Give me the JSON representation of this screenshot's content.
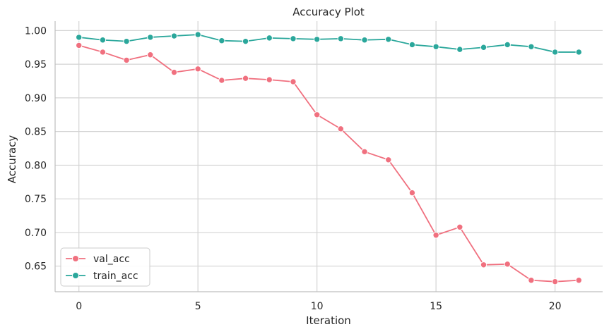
{
  "chart_data": {
    "type": "line",
    "title": "Accuracy Plot",
    "xlabel": "Iteration",
    "ylabel": "Accuracy",
    "xlim": [
      -1,
      22
    ],
    "ylim": [
      0.612,
      1.014
    ],
    "xticks": [
      0,
      5,
      10,
      15,
      20
    ],
    "yticks": [
      0.65,
      0.7,
      0.75,
      0.8,
      0.85,
      0.9,
      0.95,
      1.0
    ],
    "ytick_labels": [
      "0.65",
      "0.70",
      "0.75",
      "0.80",
      "0.85",
      "0.90",
      "0.95",
      "1.00"
    ],
    "grid": true,
    "legend_position": "lower-left",
    "x": [
      0,
      1,
      2,
      3,
      4,
      5,
      6,
      7,
      8,
      9,
      10,
      11,
      12,
      13,
      14,
      15,
      16,
      17,
      18,
      19,
      20,
      21
    ],
    "series": [
      {
        "name": "val_acc",
        "color": "#f0707f",
        "values": [
          0.978,
          0.968,
          0.956,
          0.964,
          0.938,
          0.943,
          0.926,
          0.929,
          0.927,
          0.924,
          0.875,
          0.854,
          0.82,
          0.808,
          0.759,
          0.696,
          0.708,
          0.652,
          0.653,
          0.629,
          0.627,
          0.629
        ]
      },
      {
        "name": "train_acc",
        "color": "#2aa79b",
        "values": [
          0.99,
          0.986,
          0.984,
          0.99,
          0.992,
          0.994,
          0.985,
          0.984,
          0.989,
          0.988,
          0.987,
          0.988,
          0.986,
          0.987,
          0.979,
          0.976,
          0.972,
          0.975,
          0.979,
          0.976,
          0.968,
          0.968
        ]
      }
    ]
  }
}
